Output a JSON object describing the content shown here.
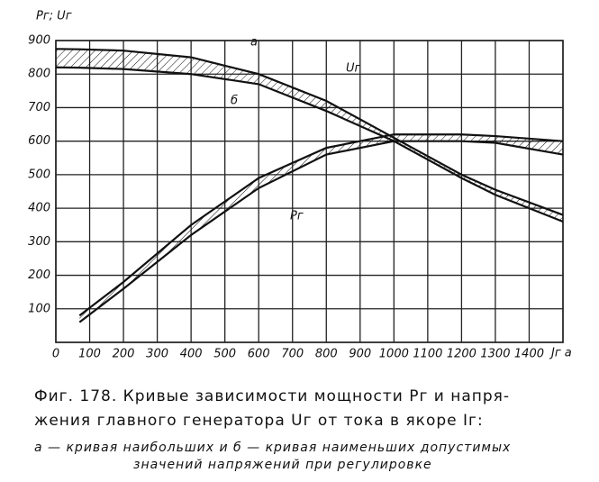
{
  "chart_data": {
    "type": "line",
    "y_label": "Pг; Uг",
    "x_label": "Jг а",
    "x": [
      0,
      70,
      200,
      400,
      600,
      800,
      1000,
      1200,
      1300,
      1500
    ],
    "series": [
      {
        "name": "а",
        "color": "#111111",
        "values": [
          875,
          874,
          870,
          850,
          800,
          720,
          610,
          500,
          455,
          380
        ]
      },
      {
        "name": "б",
        "color": "#111111",
        "values": [
          820,
          819,
          815,
          800,
          770,
          690,
          600,
          490,
          440,
          360
        ]
      },
      {
        "color": "#111111",
        "values": [
          null,
          80,
          180,
          350,
          490,
          580,
          620,
          620,
          615,
          600
        ]
      },
      {
        "color": "#111111",
        "values": [
          null,
          60,
          160,
          320,
          460,
          560,
          600,
          600,
          595,
          560
        ]
      }
    ],
    "annotations": [
      "Uг",
      "Pг"
    ],
    "xlim": [
      0,
      1500
    ],
    "ylim": [
      0,
      900
    ],
    "xticks": [
      0,
      100,
      200,
      300,
      400,
      500,
      600,
      700,
      800,
      900,
      1000,
      1100,
      1200,
      1300,
      1400
    ],
    "yticks": [
      100,
      200,
      300,
      400,
      500,
      600,
      700,
      800,
      900
    ],
    "grid": true,
    "caption": [
      "Фиг. 178. Кривые зависимости мощности Pг и напря-",
      "жения главного генератора Uг от тока в якоре Iг:"
    ],
    "note": [
      "а — кривая наибольших и б — кривая наименьших допустимых",
      "значений напряжений при регулировке"
    ]
  }
}
